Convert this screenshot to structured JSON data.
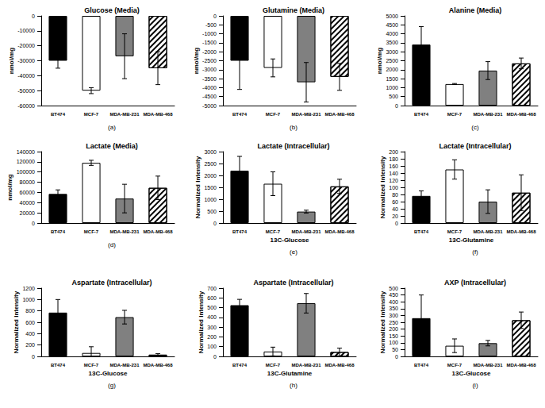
{
  "chart_data": [
    {
      "type": "bar",
      "title": "Glucose (Media)",
      "annotation": "(a)",
      "ylabel": "nmol/mg",
      "categories": [
        "BT474",
        "MCF-7",
        "MDA-MB-231",
        "MDA-MB-468"
      ],
      "values": [
        -30000,
        -50000,
        -27000,
        -35000
      ],
      "errors": [
        5000,
        2000,
        15000,
        11000
      ],
      "colors": [
        "#000000",
        "#ffffff",
        "#808080",
        "#ffffff"
      ],
      "ylim": [
        -60000,
        0
      ],
      "yticks": [
        -60000,
        -50000,
        -40000,
        -30000,
        -20000,
        -10000,
        0
      ],
      "grid": false
    },
    {
      "type": "bar",
      "title": "Glutamine (Media)",
      "annotation": "(b)",
      "ylabel": "nmol/mg",
      "categories": [
        "BT474",
        "MCF-7",
        "MDA-MB-231",
        "MDA-MB-468"
      ],
      "values": [
        -2500,
        -2900,
        -3700,
        -3400
      ],
      "errors": [
        1600,
        500,
        1100,
        750
      ],
      "colors": [
        "#000000",
        "#ffffff",
        "#808080",
        "#ffffff"
      ],
      "ylim": [
        -5000,
        0
      ],
      "yticks": [
        -5000,
        -4500,
        -4000,
        -3500,
        -3000,
        -2500,
        -2000,
        -1500,
        -1000,
        -500,
        0
      ],
      "grid": false
    },
    {
      "type": "bar",
      "title": "Alanine (Media)",
      "annotation": "(c)",
      "ylabel": "nmol/mg",
      "categories": [
        "BT474",
        "MCF-7",
        "MDA-MB-231",
        "MDA-MB-468"
      ],
      "values": [
        3400,
        1200,
        1950,
        2350
      ],
      "errors": [
        1000,
        30,
        500,
        300
      ],
      "colors": [
        "#000000",
        "#ffffff",
        "#808080",
        "#ffffff"
      ],
      "ylim": [
        0,
        5000
      ],
      "yticks": [
        0,
        500,
        1000,
        1500,
        2000,
        2500,
        3000,
        3500,
        4000,
        4500,
        5000
      ],
      "grid": false
    },
    {
      "type": "bar",
      "title": "Lactate (Media)",
      "annotation": "(d)",
      "ylabel": "nmol/mg",
      "categories": [
        "BT474",
        "MCF-7",
        "MDA-MB-231",
        "MDA-MB-468"
      ],
      "values": [
        57000,
        118000,
        48000,
        69000
      ],
      "errors": [
        8000,
        5000,
        28000,
        23000
      ],
      "colors": [
        "#000000",
        "#ffffff",
        "#808080",
        "#ffffff"
      ],
      "ylim": [
        0,
        140000
      ],
      "yticks": [
        0,
        20000,
        40000,
        60000,
        80000,
        100000,
        120000,
        140000
      ],
      "grid": false
    },
    {
      "type": "bar",
      "title": "Lactate (Intracellular)",
      "annotation": "(e)",
      "ylabel": "Normalized Intensity",
      "xlabel": "13C-Glucose",
      "categories": [
        "BT474",
        "MCF-7",
        "MDA-MB-231",
        "MDA-MB-468"
      ],
      "values": [
        2200,
        1650,
        480,
        1540
      ],
      "errors": [
        600,
        500,
        60,
        300
      ],
      "colors": [
        "#000000",
        "#ffffff",
        "#808080",
        "#ffffff"
      ],
      "ylim": [
        0,
        3000
      ],
      "yticks": [
        0,
        500,
        1000,
        1500,
        2000,
        2500,
        3000
      ],
      "grid": false
    },
    {
      "type": "bar",
      "title": "Lactate (Intracellular)",
      "annotation": "(f)",
      "ylabel": "Normalized Intensity",
      "xlabel": "13C-Glutamine",
      "categories": [
        "BT474",
        "MCF-7",
        "MDA-MB-231",
        "MDA-MB-468"
      ],
      "values": [
        76,
        150,
        60,
        85
      ],
      "errors": [
        14,
        27,
        33,
        50
      ],
      "colors": [
        "#000000",
        "#ffffff",
        "#808080",
        "#ffffff"
      ],
      "ylim": [
        0,
        200
      ],
      "yticks": [
        0,
        20,
        40,
        60,
        80,
        100,
        120,
        140,
        160,
        180,
        200
      ],
      "grid": false
    },
    {
      "type": "bar",
      "title": "Aspartate (Intracellular)",
      "annotation": "(g)",
      "ylabel": "Normalized Intensity",
      "xlabel": "13C-Glucose",
      "categories": [
        "BT474",
        "MCF-7",
        "MDA-MB-231",
        "MDA-MB-468"
      ],
      "values": [
        770,
        60,
        690,
        30
      ],
      "errors": [
        230,
        110,
        120,
        20
      ],
      "colors": [
        "#000000",
        "#ffffff",
        "#808080",
        "#ffffff"
      ],
      "ylim": [
        0,
        1200
      ],
      "yticks": [
        0,
        200,
        400,
        600,
        800,
        1000,
        1200
      ],
      "grid": false
    },
    {
      "type": "bar",
      "title": "Aspartate (Intracellular)",
      "annotation": "(h)",
      "ylabel": "Normalized Intensity",
      "xlabel": "13C-Glutamine",
      "categories": [
        "BT474",
        "MCF-7",
        "MDA-MB-231",
        "MDA-MB-468"
      ],
      "values": [
        525,
        50,
        545,
        45
      ],
      "errors": [
        60,
        45,
        100,
        40
      ],
      "colors": [
        "#000000",
        "#ffffff",
        "#808080",
        "#ffffff"
      ],
      "ylim": [
        0,
        700
      ],
      "yticks": [
        0,
        100,
        200,
        300,
        400,
        500,
        600,
        700
      ],
      "grid": false
    },
    {
      "type": "bar",
      "title": "AXP (Intracellular)",
      "annotation": "(i)",
      "ylabel": "Normalized Intensity",
      "xlabel": "13C-Glucose",
      "categories": [
        "BT474",
        "MCF-7",
        "MDA-MB-231",
        "MDA-MB-468"
      ],
      "values": [
        280,
        78,
        97,
        265
      ],
      "errors": [
        170,
        50,
        20,
        60
      ],
      "colors": [
        "#000000",
        "#ffffff",
        "#808080",
        "#ffffff"
      ],
      "ylim": [
        0,
        500
      ],
      "yticks": [
        0,
        50,
        100,
        150,
        200,
        250,
        300,
        350,
        400,
        450,
        500
      ],
      "grid": false
    }
  ]
}
